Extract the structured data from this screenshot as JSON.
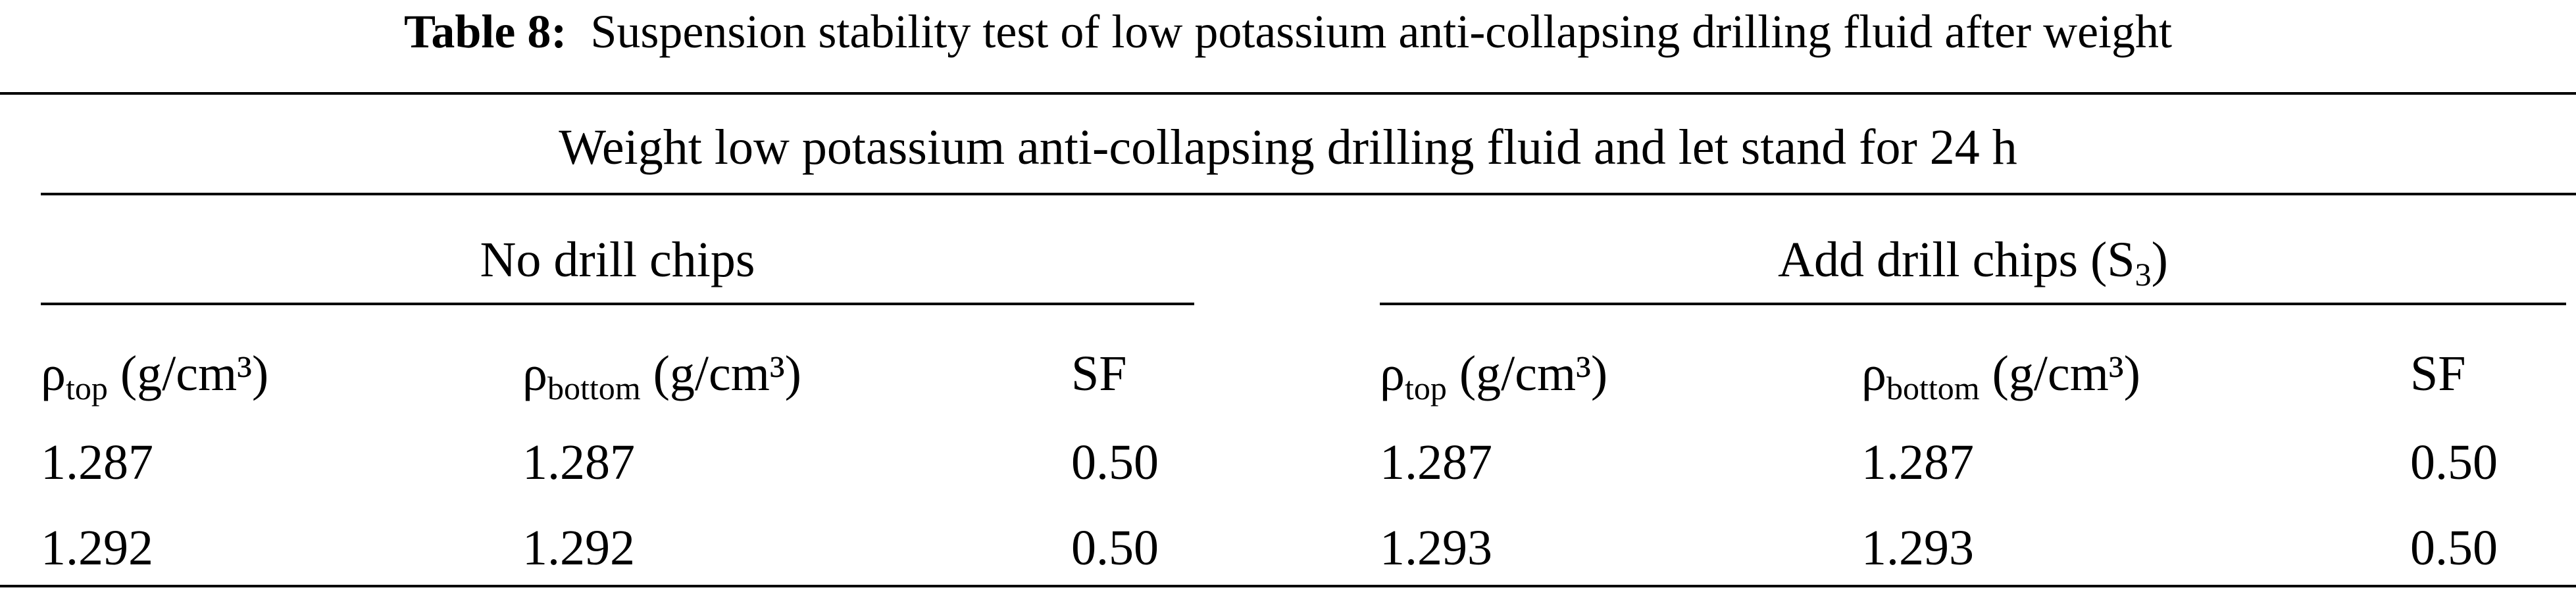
{
  "table": {
    "caption_label": "Table 8:",
    "caption": "Suspension stability test of low potassium anti-collapsing drilling fluid after weight",
    "span_header": "Weight low potassium anti-collapsing drilling fluid and let stand for 24 h",
    "groups": [
      {
        "text": "No drill chips"
      },
      {
        "text": "Add drill chips (S",
        "subscript": "3",
        "text_after": ")"
      }
    ],
    "columns": [
      {
        "symbol": "ρ",
        "subscript": "top",
        "unit": "(g/cm³)"
      },
      {
        "symbol": "ρ",
        "subscript": "bottom",
        "unit": "(g/cm³)"
      },
      {
        "symbol": "SF"
      },
      {
        "symbol": "ρ",
        "subscript": "top",
        "unit": "(g/cm³)"
      },
      {
        "symbol": "ρ",
        "subscript": "bottom",
        "unit": "(g/cm³)"
      },
      {
        "symbol": "SF"
      }
    ],
    "rows": [
      [
        "1.287",
        "1.287",
        "0.50",
        "1.287",
        "1.287",
        "0.50"
      ],
      [
        "1.292",
        "1.292",
        "0.50",
        "1.293",
        "1.293",
        "0.50"
      ]
    ]
  }
}
